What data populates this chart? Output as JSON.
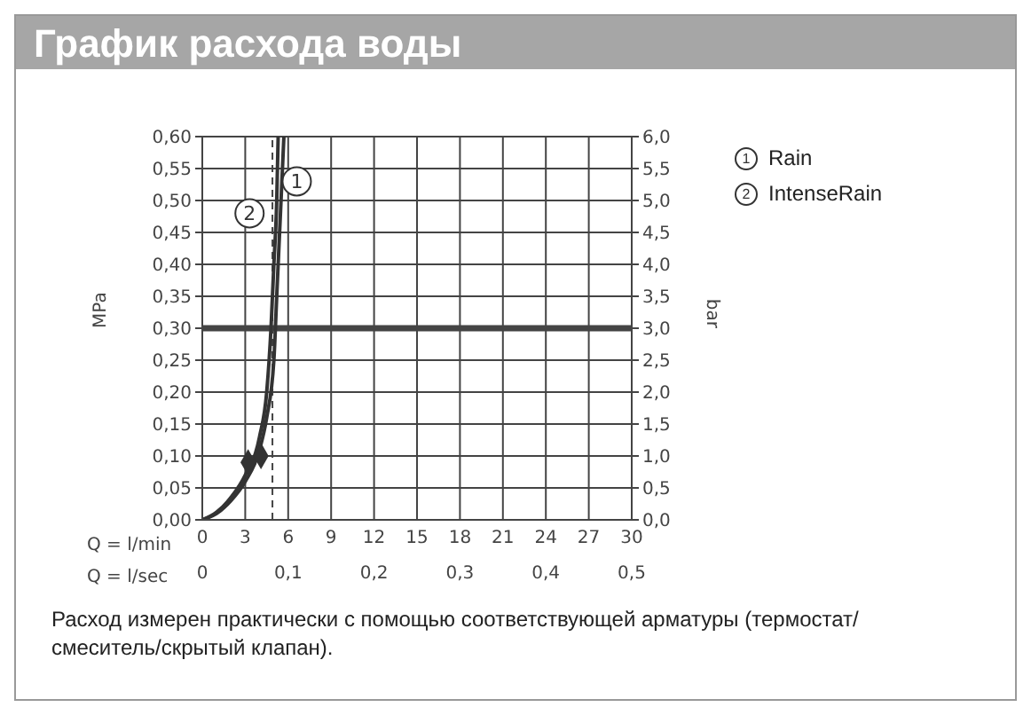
{
  "chart_data": {
    "type": "line",
    "title": "График расхода воды",
    "xlabel": "Q = l/min",
    "x2label": "Q = l/sec",
    "ylabel": "MPa",
    "y2label": "bar",
    "series": [
      {
        "name": "Rain",
        "color": "#333333",
        "x": [
          0,
          1,
          2,
          3,
          4,
          4.5,
          5,
          5.2,
          5.4,
          5.6,
          5.7
        ],
        "values": [
          0,
          0.01,
          0.03,
          0.06,
          0.11,
          0.16,
          0.25,
          0.35,
          0.45,
          0.55,
          0.6
        ]
      },
      {
        "name": "IntenseRain",
        "color": "#333333",
        "x": [
          0,
          1,
          2,
          3,
          4,
          4.5,
          4.8,
          5.0,
          5.2,
          5.3
        ],
        "values": [
          0,
          0.012,
          0.035,
          0.07,
          0.13,
          0.2,
          0.3,
          0.4,
          0.5,
          0.6
        ]
      },
      {
        "type": "scatter",
        "color": "#333333",
        "marker": "diamond",
        "x": [
          3.2,
          4.1
        ],
        "values": [
          0.09,
          0.1
        ]
      }
    ],
    "xlim": [
      0,
      30
    ],
    "xticks": [
      0,
      3,
      6,
      9,
      12,
      15,
      18,
      21,
      24,
      27,
      30
    ],
    "x2lim": [
      0,
      0.5
    ],
    "x2ticks": [
      0,
      {
        "value": 0.1,
        "label": "0,1"
      },
      {
        "value": 0.2,
        "label": "0,2"
      },
      {
        "value": 0.3,
        "label": "0,3"
      },
      {
        "value": 0.4,
        "label": "0,4"
      },
      {
        "value": 0.5,
        "label": "0,5"
      }
    ],
    "ylim": [
      0,
      0.6
    ],
    "yticks": [
      {
        "value": 0,
        "label": "0,00"
      },
      {
        "value": 0.05,
        "label": "0,05"
      },
      {
        "value": 0.1,
        "label": "0,10"
      },
      {
        "value": 0.15,
        "label": "0,15"
      },
      {
        "value": 0.2,
        "label": "0,20"
      },
      {
        "value": 0.25,
        "label": "0,25"
      },
      {
        "value": 0.3,
        "label": "0,30"
      },
      {
        "value": 0.35,
        "label": "0,35"
      },
      {
        "value": 0.4,
        "label": "0,40"
      },
      {
        "value": 0.45,
        "label": "0,45"
      },
      {
        "value": 0.5,
        "label": "0,50"
      },
      {
        "value": 0.55,
        "label": "0,55"
      },
      {
        "value": 0.6,
        "label": "0,60"
      }
    ],
    "y2lim": [
      0,
      6
    ],
    "y2ticks": [
      {
        "value": 0,
        "label": "0,0"
      },
      {
        "value": 0.5,
        "label": "0,5"
      },
      {
        "value": 1,
        "label": "1,0"
      },
      {
        "value": 1.5,
        "label": "1,5"
      },
      {
        "value": 2,
        "label": "2,0"
      },
      {
        "value": 2.5,
        "label": "2,5"
      },
      {
        "value": 3,
        "label": "3,0"
      },
      {
        "value": 3.5,
        "label": "3,5"
      },
      {
        "value": 4,
        "label": "4,0"
      },
      {
        "value": 4.5,
        "label": "4,5"
      },
      {
        "value": 5,
        "label": "5,0"
      },
      {
        "value": 5.5,
        "label": "5,5"
      },
      {
        "value": 6,
        "label": "6,0"
      }
    ],
    "ref_lines": [
      {
        "axis": "y",
        "value": 0.3,
        "color": "#444444",
        "line_style": "solid"
      },
      {
        "axis": "x",
        "value": 4.9,
        "color": "#444444",
        "line_style": "dashed"
      }
    ],
    "annotations": [
      {
        "text": "1",
        "x": 6.6,
        "y": 0.53
      },
      {
        "text": "2",
        "x": 3.3,
        "y": 0.48
      },
      "Расход измерен практически с помощью соответствующей арматуры (термостат/смеситель/скрытый клапан)."
    ],
    "grid": true,
    "legend": "top right",
    "marker": "none",
    "line_style": "solid"
  }
}
